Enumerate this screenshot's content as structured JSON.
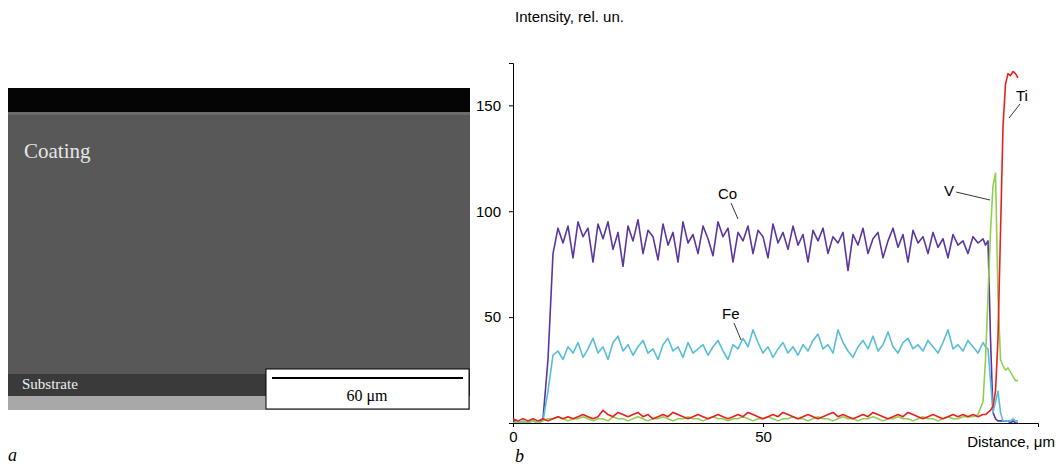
{
  "chart_data": {
    "type": "line",
    "panel": "b",
    "y_label": "Intensity, rel. un.",
    "x_label": "Distance, μm",
    "x": [
      0,
      1,
      2,
      3,
      4,
      5,
      6,
      7,
      8,
      9,
      10,
      11,
      12,
      13,
      14,
      15,
      16,
      17,
      18,
      19,
      20,
      21,
      22,
      23,
      24,
      25,
      26,
      27,
      28,
      29,
      30,
      31,
      32,
      33,
      34,
      35,
      36,
      37,
      38,
      39,
      40,
      41,
      42,
      43,
      44,
      45,
      46,
      47,
      48,
      49,
      50,
      51,
      52,
      53,
      54,
      55,
      56,
      57,
      58,
      59,
      60,
      61,
      62,
      63,
      64,
      65,
      66,
      67,
      68,
      69,
      70,
      71,
      72,
      73,
      74,
      75,
      76,
      77,
      78,
      79,
      80,
      81,
      82,
      83,
      84,
      85,
      86,
      87,
      88,
      89,
      90,
      91,
      92,
      93,
      94,
      94.5,
      95,
      95.5,
      96,
      96.5,
      97,
      97.5,
      98,
      98.5,
      99,
      99.5,
      100,
      100.5,
      101
    ],
    "series": [
      {
        "name": "Co",
        "color": "#5b35a0",
        "values": [
          1,
          1,
          0,
          1,
          1,
          0,
          2,
          30,
          80,
          92,
          85,
          93,
          78,
          95,
          88,
          92,
          76,
          94,
          87,
          95,
          82,
          90,
          74,
          93,
          86,
          96,
          80,
          91,
          88,
          77,
          94,
          84,
          90,
          76,
          95,
          85,
          89,
          80,
          93,
          87,
          79,
          95,
          88,
          92,
          76,
          90,
          86,
          93,
          80,
          91,
          88,
          78,
          94,
          85,
          90,
          82,
          93,
          84,
          89,
          76,
          91,
          86,
          92,
          80,
          88,
          85,
          90,
          72,
          89,
          84,
          92,
          80,
          87,
          90,
          78,
          86,
          92,
          83,
          89,
          76,
          91,
          85,
          88,
          80,
          90,
          83,
          87,
          78,
          89,
          84,
          86,
          80,
          88,
          85,
          87,
          84,
          86,
          40,
          5,
          2,
          1,
          1,
          1,
          1,
          1,
          0,
          1,
          0,
          0
        ]
      },
      {
        "name": "Fe",
        "color": "#56bfd6",
        "values": [
          0,
          0,
          1,
          0,
          1,
          0,
          1,
          15,
          32,
          34,
          30,
          36,
          33,
          38,
          31,
          35,
          40,
          33,
          36,
          30,
          38,
          41,
          34,
          37,
          32,
          36,
          39,
          33,
          35,
          30,
          37,
          40,
          34,
          36,
          31,
          38,
          33,
          35,
          37,
          32,
          36,
          39,
          34,
          30,
          37,
          35,
          40,
          36,
          44,
          38,
          33,
          36,
          31,
          35,
          38,
          33,
          36,
          32,
          37,
          34,
          39,
          42,
          35,
          37,
          33,
          44,
          38,
          34,
          31,
          36,
          39,
          35,
          41,
          34,
          37,
          43,
          36,
          33,
          38,
          40,
          35,
          37,
          34,
          39,
          36,
          33,
          38,
          44,
          35,
          37,
          34,
          39,
          36,
          33,
          38,
          36,
          35,
          20,
          5,
          10,
          15,
          5,
          1,
          1,
          1,
          1,
          2,
          1,
          1
        ]
      },
      {
        "name": "V",
        "color": "#8fd14f",
        "values": [
          0,
          1,
          0,
          1,
          1,
          0,
          1,
          2,
          2,
          3,
          2,
          1,
          2,
          2,
          3,
          2,
          1,
          2,
          2,
          1,
          3,
          2,
          2,
          1,
          2,
          3,
          2,
          1,
          2,
          2,
          3,
          2,
          1,
          2,
          2,
          3,
          2,
          2,
          1,
          2,
          3,
          2,
          2,
          1,
          2,
          2,
          3,
          2,
          1,
          2,
          2,
          3,
          2,
          1,
          2,
          2,
          3,
          2,
          2,
          1,
          2,
          3,
          2,
          2,
          1,
          2,
          3,
          2,
          2,
          1,
          2,
          2,
          3,
          2,
          1,
          2,
          2,
          3,
          2,
          2,
          1,
          2,
          3,
          2,
          2,
          1,
          2,
          3,
          2,
          2,
          3,
          3,
          3,
          4,
          10,
          30,
          60,
          90,
          112,
          118,
          60,
          30,
          27,
          25,
          26,
          24,
          22,
          20,
          20
        ]
      },
      {
        "name": "Ti",
        "color": "#e8211f",
        "values": [
          2,
          1,
          2,
          1,
          2,
          1,
          2,
          1,
          2,
          3,
          2,
          3,
          2,
          3,
          4,
          3,
          2,
          3,
          6,
          4,
          3,
          5,
          4,
          3,
          4,
          5,
          3,
          4,
          2,
          3,
          4,
          3,
          5,
          4,
          3,
          2,
          3,
          4,
          3,
          2,
          3,
          4,
          3,
          2,
          3,
          4,
          3,
          5,
          4,
          3,
          2,
          3,
          4,
          3,
          5,
          4,
          3,
          2,
          3,
          4,
          3,
          2,
          3,
          4,
          5,
          3,
          4,
          3,
          2,
          3,
          4,
          3,
          5,
          4,
          3,
          2,
          3,
          4,
          3,
          5,
          4,
          3,
          2,
          3,
          4,
          3,
          2,
          3,
          4,
          3,
          4,
          3,
          4,
          3,
          4,
          4,
          5,
          6,
          8,
          15,
          40,
          90,
          140,
          160,
          165,
          164,
          166,
          165,
          163
        ]
      }
    ],
    "xlim": [
      0,
      105
    ],
    "xticks": [
      0,
      50
    ],
    "ylim": [
      0,
      170
    ],
    "yticks": [
      50,
      100,
      150
    ]
  },
  "micrograph": {
    "panel": "a",
    "labels": [
      "Coating",
      "Substrate"
    ],
    "scale_bar": "60 μm"
  }
}
